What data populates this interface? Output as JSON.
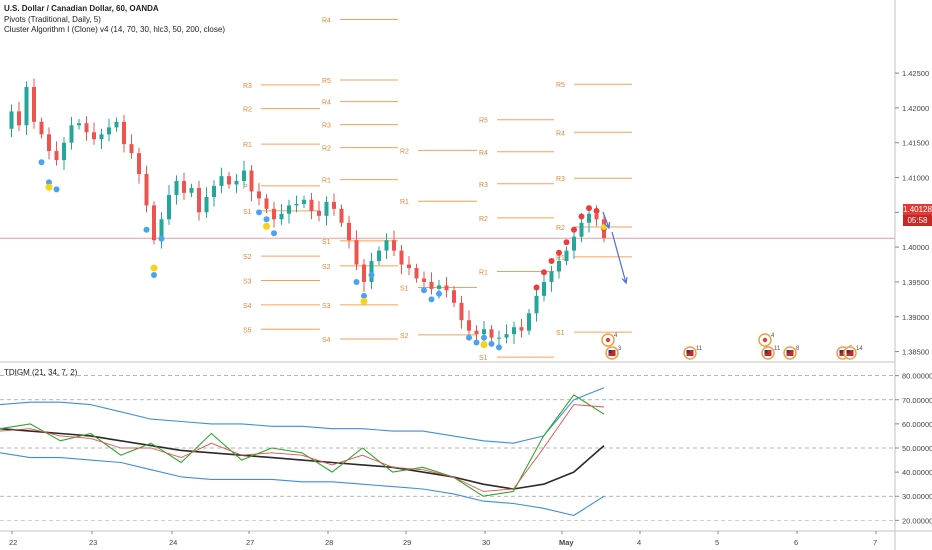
{
  "window": {
    "title_line": "U.S. Dollar / Canadian Dollar, 60, OANDA",
    "indicator_1": "Pivots (Traditional, Daily, 5)",
    "indicator_2": "Cluster Algorithm I (Clone) v4 (14, 70, 30, hlc3, 50, 200, close)",
    "oscillator_title": "TDIGM (21, 34, 7, 2)"
  },
  "price_tags": {
    "last_price": "1.40128",
    "countdown": "05:58"
  },
  "colors": {
    "up": "#26a69a",
    "down": "#ef5350",
    "pivot": "#f5a05a",
    "pivot_label": "#e0893c",
    "buy_dot": "#4aa3f0",
    "sell_dot": "#ef3b3b",
    "signal_dot": "#f7d21a",
    "arrow": "#4a6fd6",
    "band": "#3f8fd8",
    "mid": "#2a2a2a",
    "rsi": "#2ea82e",
    "signal": "#e05050"
  },
  "chart_data": [
    {
      "type": "candlestick",
      "title": "U.S. Dollar / Canadian Dollar, 60, OANDA",
      "x_ticks": [
        "22",
        "23",
        "24",
        "27",
        "28",
        "29",
        "30",
        "May",
        "4",
        "5",
        "6",
        "7"
      ],
      "ylim": [
        1.3835,
        1.4355
      ],
      "y_ticks": [
        "1.42500",
        "1.42000",
        "1.41500",
        "1.41000",
        "1.40500",
        "1.40000",
        "1.39500",
        "1.39000",
        "1.38500"
      ],
      "last_price": 1.40128,
      "close_path": [
        1.417,
        1.4195,
        1.4175,
        1.423,
        1.418,
        1.4162,
        1.4138,
        1.4125,
        1.415,
        1.4175,
        1.4178,
        1.4165,
        1.4155,
        1.4162,
        1.4172,
        1.418,
        1.4148,
        1.4135,
        1.4105,
        1.406,
        1.401,
        1.404,
        1.4075,
        1.4095,
        1.4078,
        1.4085,
        1.405,
        1.4072,
        1.4088,
        1.4102,
        1.409,
        1.4095,
        1.411,
        1.408,
        1.407,
        1.4055,
        1.404,
        1.4048,
        1.406,
        1.4062,
        1.4068,
        1.4052,
        1.4045,
        1.4065,
        1.4055,
        1.4035,
        1.401,
        1.3975,
        1.395,
        1.398,
        1.3995,
        1.401,
        1.3995,
        1.3975,
        1.397,
        1.3955,
        1.395,
        1.394,
        1.3945,
        1.3938,
        1.392,
        1.3895,
        1.388,
        1.3875,
        1.3882,
        1.387,
        1.387,
        1.3875,
        1.3885,
        1.388,
        1.3905,
        1.393,
        1.395,
        1.3965,
        1.398,
        1.3995,
        1.4015,
        1.4035,
        1.4048,
        1.404,
        1.4013
      ],
      "pivot_levels": [
        {
          "label": "R4",
          "value": 1.4327,
          "x_from": "28",
          "x_to": "29"
        },
        {
          "label": "R3",
          "value": 1.4233,
          "x_from": "27",
          "x_to": "28"
        },
        {
          "label": "R2",
          "value": 1.4199,
          "x_from": "27",
          "x_to": "28"
        },
        {
          "label": "R1",
          "value": 1.4148,
          "x_from": "27",
          "x_to": "28"
        },
        {
          "label": "P",
          "value": 1.4088,
          "x_from": "27",
          "x_to": "28"
        },
        {
          "label": "S1",
          "value": 1.4052,
          "x_from": "27",
          "x_to": "28"
        },
        {
          "label": "S2",
          "value": 1.3987,
          "x_from": "27",
          "x_to": "28"
        },
        {
          "label": "S3",
          "value": 1.3952,
          "x_from": "27",
          "x_to": "28"
        },
        {
          "label": "S4",
          "value": 1.3917,
          "x_from": "27",
          "x_to": "28"
        },
        {
          "label": "S5",
          "value": 1.3882,
          "x_from": "27",
          "x_to": "28"
        },
        {
          "label": "R5",
          "value": 1.424,
          "x_from": "28",
          "x_to": "29"
        },
        {
          "label": "R4",
          "value": 1.4209,
          "x_from": "28",
          "x_to": "29"
        },
        {
          "label": "R3",
          "value": 1.4176,
          "x_from": "28",
          "x_to": "29"
        },
        {
          "label": "R2",
          "value": 1.4143,
          "x_from": "28",
          "x_to": "29"
        },
        {
          "label": "R1",
          "value": 1.4097,
          "x_from": "28",
          "x_to": "29"
        },
        {
          "label": "S1",
          "value": 1.4009,
          "x_from": "28",
          "x_to": "29"
        },
        {
          "label": "S2",
          "value": 1.3973,
          "x_from": "28",
          "x_to": "29"
        },
        {
          "label": "S3",
          "value": 1.3917,
          "x_from": "28",
          "x_to": "29"
        },
        {
          "label": "S4",
          "value": 1.3868,
          "x_from": "28",
          "x_to": "29"
        },
        {
          "label": "R2",
          "value": 1.4139,
          "x_from": "29",
          "x_to": "30"
        },
        {
          "label": "R1",
          "value": 1.4066,
          "x_from": "29",
          "x_to": "30"
        },
        {
          "label": "S1",
          "value": 1.3942,
          "x_from": "29",
          "x_to": "30"
        },
        {
          "label": "S2",
          "value": 1.3874,
          "x_from": "29",
          "x_to": "30"
        },
        {
          "label": "R5",
          "value": 1.4183,
          "x_from": "30",
          "x_to": "May"
        },
        {
          "label": "R4",
          "value": 1.4137,
          "x_from": "30",
          "x_to": "May"
        },
        {
          "label": "R3",
          "value": 1.4091,
          "x_from": "30",
          "x_to": "May"
        },
        {
          "label": "R2",
          "value": 1.4042,
          "x_from": "30",
          "x_to": "May"
        },
        {
          "label": "R1",
          "value": 1.3965,
          "x_from": "30",
          "x_to": "May"
        },
        {
          "label": "S1",
          "value": 1.3842,
          "x_from": "30",
          "x_to": "May"
        },
        {
          "label": "R5",
          "value": 1.4234,
          "x_from": "May",
          "x_to": "4"
        },
        {
          "label": "R4",
          "value": 1.4165,
          "x_from": "May",
          "x_to": "4"
        },
        {
          "label": "R3",
          "value": 1.4099,
          "x_from": "May",
          "x_to": "4"
        },
        {
          "label": "R2",
          "value": 1.4029,
          "x_from": "May",
          "x_to": "4"
        },
        {
          "label": "R1",
          "value": 1.3986,
          "x_from": "May",
          "x_to": "4"
        },
        {
          "label": "S1",
          "value": 1.3878,
          "x_from": "May",
          "x_to": "4"
        }
      ],
      "event_markers": [
        {
          "flag": "CA",
          "count": "4"
        },
        {
          "flag": "US",
          "count": "3"
        },
        {
          "flag": "US",
          "count": "11"
        },
        {
          "flag": "CA",
          "count": "4"
        },
        {
          "flag": "US",
          "count": "11"
        },
        {
          "flag": "US",
          "count": "8"
        },
        {
          "flag": "US",
          "count": "5"
        },
        {
          "flag": "US",
          "count": "14"
        }
      ]
    },
    {
      "type": "line",
      "title": "TDIGM (21, 34, 7, 2)",
      "ylim": [
        16,
        84
      ],
      "y_ticks": [
        "80.00000",
        "70.00000",
        "60.00000",
        "50.00000",
        "40.00000",
        "30.00000",
        "20.00000"
      ],
      "dashed_levels": [
        80,
        70,
        50,
        30
      ],
      "series": [
        {
          "key": "upper",
          "values": [
            68,
            69,
            69,
            68,
            65,
            62,
            61,
            60,
            60,
            59,
            59,
            58,
            58,
            57,
            57,
            55,
            53,
            52,
            55,
            70,
            75
          ]
        },
        {
          "key": "lower",
          "values": [
            48,
            46,
            46,
            45,
            44,
            41,
            38,
            37,
            37,
            37,
            36,
            36,
            35,
            34,
            33,
            31,
            28,
            27,
            25,
            22,
            30
          ]
        },
        {
          "key": "mid",
          "values": [
            58,
            57,
            56,
            55,
            53,
            51,
            49,
            48,
            47,
            46,
            45,
            44,
            43,
            42,
            40,
            38,
            35,
            33,
            35,
            40,
            51
          ]
        },
        {
          "key": "rsi",
          "values": [
            58,
            60,
            53,
            56,
            47,
            52,
            44,
            56,
            45,
            50,
            48,
            40,
            50,
            40,
            42,
            38,
            30,
            32,
            55,
            72,
            64
          ]
        },
        {
          "key": "signal",
          "values": [
            57,
            58,
            55,
            54,
            50,
            50,
            46,
            52,
            47,
            48,
            47,
            43,
            47,
            42,
            41,
            38,
            32,
            33,
            50,
            68,
            67
          ]
        }
      ]
    }
  ]
}
